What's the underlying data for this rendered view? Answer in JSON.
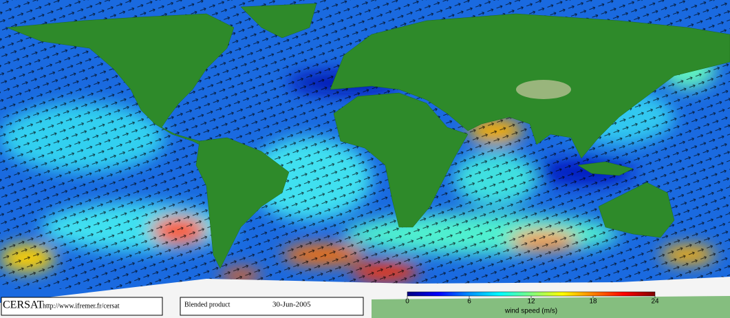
{
  "footer": {
    "logo": "CERSAT",
    "url": "http://www.ifremer.fr/cersat",
    "product": "Blended product",
    "date": "30-Jun-2005"
  },
  "colorbar": {
    "label": "wind speed (m/s)",
    "lim": [
      0,
      24
    ],
    "ticks": [
      0,
      6,
      12,
      18,
      24
    ],
    "colors": [
      "#000080",
      "#0000ff",
      "#0090ff",
      "#00ffff",
      "#80ff80",
      "#ffff00",
      "#ff8000",
      "#ff0000",
      "#800000"
    ]
  }
}
